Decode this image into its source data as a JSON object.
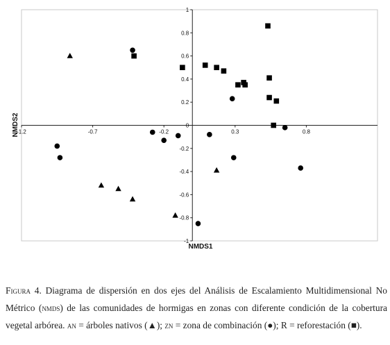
{
  "chart_data": {
    "type": "scatter",
    "xlabel": "NMDS1",
    "ylabel": "NMDS2",
    "xlim": [
      -1.2,
      1.3
    ],
    "ylim": [
      -1,
      1
    ],
    "x_ticks": [
      {
        "v": -1.2,
        "label": "-1.2"
      },
      {
        "v": -0.7,
        "label": "-0.7"
      },
      {
        "v": -0.2,
        "label": "-0.2"
      },
      {
        "v": 0.3,
        "label": "0.3"
      },
      {
        "v": 0.8,
        "label": "0.8"
      }
    ],
    "y_ticks": [
      {
        "v": 1,
        "label": "1"
      },
      {
        "v": 0.8,
        "label": "0.8"
      },
      {
        "v": 0.6,
        "label": "0.6"
      },
      {
        "v": 0.4,
        "label": "0.4"
      },
      {
        "v": 0.2,
        "label": "0.2"
      },
      {
        "v": 0,
        "label": "0"
      },
      {
        "v": -0.2,
        "label": "-0.2"
      },
      {
        "v": -0.4,
        "label": "-0.4"
      },
      {
        "v": -0.6,
        "label": "-0.6"
      },
      {
        "v": -0.8,
        "label": "-0.8"
      },
      {
        "v": -1,
        "label": "-1"
      }
    ],
    "series": [
      {
        "key": "AN",
        "marker": "triangle",
        "points": [
          [
            -0.86,
            0.6
          ],
          [
            -0.64,
            -0.52
          ],
          [
            -0.52,
            -0.55
          ],
          [
            -0.42,
            -0.64
          ],
          [
            -0.12,
            -0.78
          ],
          [
            0.17,
            -0.39
          ]
        ]
      },
      {
        "key": "ZN",
        "marker": "circle",
        "points": [
          [
            -0.42,
            0.65
          ],
          [
            -0.28,
            -0.06
          ],
          [
            -0.2,
            -0.13
          ],
          [
            -0.1,
            -0.09
          ],
          [
            -0.95,
            -0.18
          ],
          [
            -0.93,
            -0.28
          ],
          [
            0.12,
            -0.08
          ],
          [
            0.28,
            0.23
          ],
          [
            0.29,
            -0.28
          ],
          [
            0.65,
            -0.02
          ],
          [
            0.76,
            -0.37
          ],
          [
            0.04,
            -0.85
          ]
        ]
      },
      {
        "key": "R",
        "marker": "square",
        "points": [
          [
            -0.41,
            0.6
          ],
          [
            -0.07,
            0.5
          ],
          [
            0.09,
            0.52
          ],
          [
            0.17,
            0.5
          ],
          [
            0.22,
            0.47
          ],
          [
            0.32,
            0.35
          ],
          [
            0.36,
            0.37
          ],
          [
            0.37,
            0.35
          ],
          [
            0.53,
            0.86
          ],
          [
            0.54,
            0.41
          ],
          [
            0.54,
            0.24
          ],
          [
            0.59,
            0.21
          ],
          [
            0.57,
            0.0
          ]
        ]
      }
    ]
  },
  "caption": {
    "figure_label": "Figura 4.",
    "text_1": " Diagrama de dispersión en dos ejes del Análisis de Escalamiento Multidimensional No Métrico (",
    "nmds_abbrev": "nmds",
    "text_2": ") de las comunidades de hormigas en zonas con diferente condición de la cobertura vegetal arbórea. ",
    "an_abbrev": "an",
    "text_3": " = árboles nativos (▲); ",
    "zn_abbrev": "zn",
    "text_4": " = zona de combinación (●); R = reforestación (■)."
  }
}
